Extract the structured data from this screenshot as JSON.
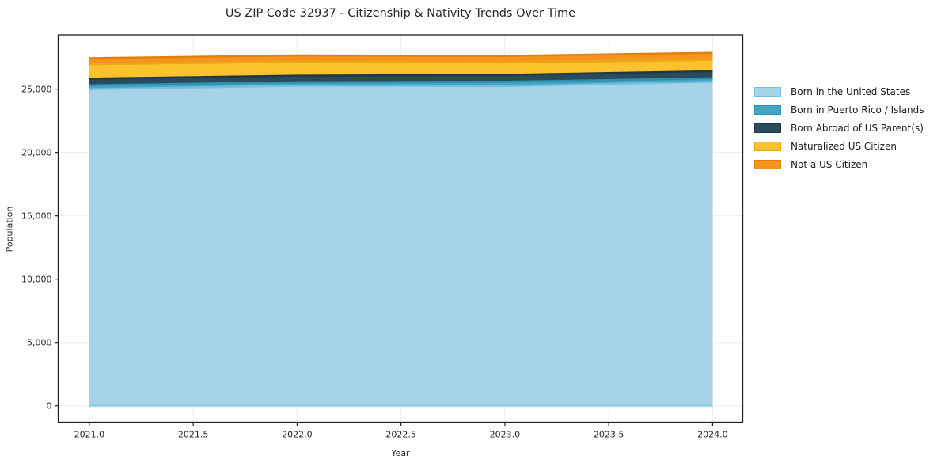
{
  "title": "US ZIP Code 32937 - Citizenship & Nativity Trends Over Time",
  "chart_data": {
    "type": "area",
    "stacked": true,
    "title": "US ZIP Code 32937 - Citizenship & Nativity Trends Over Time",
    "xlabel": "Year",
    "ylabel": "Population",
    "x": [
      2021,
      2022,
      2023,
      2024
    ],
    "series": [
      {
        "name": "Born in the United States",
        "values": [
          25000,
          25270,
          25235,
          25585
        ],
        "fill": "#a6d3e8",
        "edge": "#74bede"
      },
      {
        "name": "Born in Puerto Rico / Islands",
        "values": [
          310,
          275,
          350,
          275
        ],
        "fill": "#44a4c2",
        "edge": "#2d91b0"
      },
      {
        "name": "Born Abroad of US Parent(s)",
        "values": [
          520,
          515,
          540,
          560
        ],
        "fill": "#2a4a5d",
        "edge": "#1d3948"
      },
      {
        "name": "Naturalized US Citizen",
        "values": [
          1140,
          1105,
          980,
          890
        ],
        "fill": "#fcc22d",
        "edge": "#e9a912"
      },
      {
        "name": "Not a US Citizen",
        "values": [
          480,
          500,
          520,
          560
        ],
        "fill": "#f7941e",
        "edge": "#e2800d"
      }
    ],
    "x_ticks": [
      2021.0,
      2021.5,
      2022.0,
      2022.5,
      2023.0,
      2023.5,
      2024.0
    ],
    "x_tick_labels": [
      "2021.0",
      "2021.5",
      "2022.0",
      "2022.5",
      "2023.0",
      "2023.5",
      "2024.0"
    ],
    "y_ticks": [
      0,
      5000,
      10000,
      15000,
      20000,
      25000
    ],
    "y_tick_labels": [
      "0",
      "5,000",
      "10,000",
      "15,000",
      "20,000",
      "25,000"
    ],
    "xlim": [
      2020.85,
      2024.145
    ],
    "ylim": [
      -1300,
      29290
    ],
    "grid": true,
    "legend_position": "right-outside",
    "colors": {
      "grid": "#ededed",
      "spine": "#1f1f1f",
      "tick_text": "#262626",
      "background": "#ffffff"
    }
  }
}
